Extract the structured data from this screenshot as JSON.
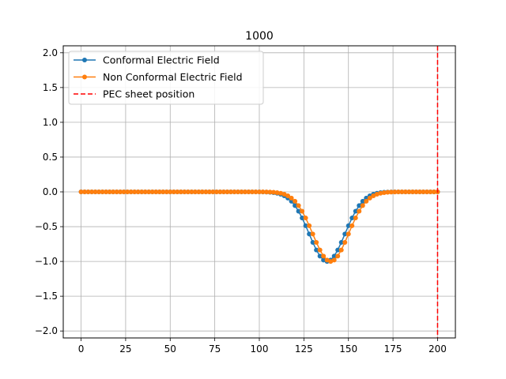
{
  "chart_data": {
    "type": "line",
    "title": "1000",
    "xlabel": "",
    "ylabel": "",
    "xlim": [
      -10,
      210
    ],
    "ylim": [
      -2.1,
      2.1
    ],
    "x_ticks": [
      0,
      25,
      50,
      75,
      100,
      125,
      150,
      175,
      200
    ],
    "x_tick_labels": [
      "0",
      "25",
      "50",
      "75",
      "100",
      "125",
      "150",
      "175",
      "200"
    ],
    "y_ticks": [
      2.0,
      1.5,
      1.0,
      0.5,
      0.0,
      -0.5,
      -1.0,
      -1.5,
      -2.0
    ],
    "y_tick_labels": [
      "2.0",
      "1.5",
      "1.0",
      "0.5",
      "0.0",
      "−0.5",
      "−1.0",
      "−1.5",
      "−2.0"
    ],
    "grid": true,
    "legend_position": "upper-left",
    "series": [
      {
        "name": "Conformal Electric Field",
        "color": "#1f77b4",
        "marker": "circle",
        "x_start": 0,
        "x_end": 200,
        "x_step": 2,
        "shape": "gaussian",
        "amplitude": -1.0,
        "center": 138,
        "sigma": 10
      },
      {
        "name": "Non Conformal Electric Field",
        "color": "#ff7f0e",
        "marker": "circle",
        "x_start": 0,
        "x_end": 200,
        "x_step": 2,
        "shape": "gaussian",
        "amplitude": -1.0,
        "center": 140,
        "sigma": 10
      }
    ],
    "vlines": [
      {
        "name": "PEC sheet position",
        "x": 200,
        "color": "#ff0000",
        "style": "dashed"
      }
    ]
  }
}
